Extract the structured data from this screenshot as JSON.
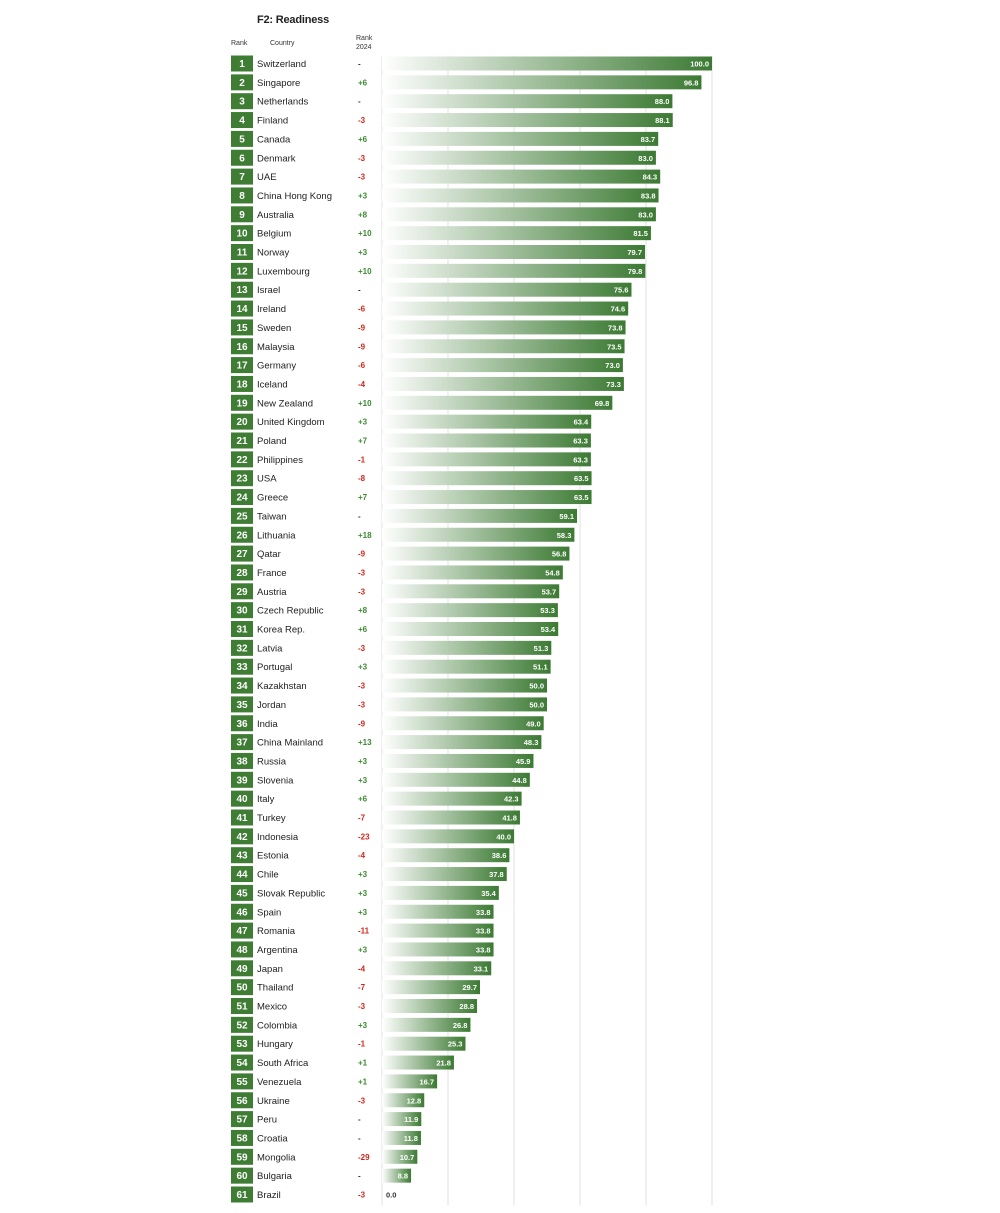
{
  "chart_data": {
    "type": "bar",
    "title": "F2: Readiness",
    "columns": {
      "rank": "Rank",
      "country": "Country",
      "change": "Rank 2024"
    },
    "xlim": [
      0,
      100
    ],
    "colors": {
      "rank_box": "#3f7d35",
      "bar_dark": "#3c7a33",
      "bar_light": "#ffffff",
      "up": "#3a8a2f",
      "down": "#d4261c",
      "same": "#333333"
    },
    "rows": [
      {
        "rank": "1",
        "country": "Switzerland",
        "change": "-",
        "value": 100.0,
        "label": "100.0"
      },
      {
        "rank": "2",
        "country": "Singapore",
        "change": "+6",
        "value": 96.8,
        "label": "96.8"
      },
      {
        "rank": "3",
        "country": "Netherlands",
        "change": "-",
        "value": 88.0,
        "label": "88.0"
      },
      {
        "rank": "4",
        "country": "Finland",
        "change": "-3",
        "value": 88.1,
        "label": "88.1"
      },
      {
        "rank": "5",
        "country": "Canada",
        "change": "+6",
        "value": 83.7,
        "label": "83.7"
      },
      {
        "rank": "6",
        "country": "Denmark",
        "change": "-3",
        "value": 83.0,
        "label": "83.0"
      },
      {
        "rank": "7",
        "country": "UAE",
        "change": "-3",
        "value": 84.3,
        "label": "84.3"
      },
      {
        "rank": "8",
        "country": "China Hong Kong",
        "change": "+3",
        "value": 83.8,
        "label": "83.8"
      },
      {
        "rank": "9",
        "country": "Australia",
        "change": "+8",
        "value": 83.0,
        "label": "83.0"
      },
      {
        "rank": "10",
        "country": "Belgium",
        "change": "+10",
        "value": 81.5,
        "label": "81.5"
      },
      {
        "rank": "11",
        "country": "Norway",
        "change": "+3",
        "value": 79.7,
        "label": "79.7"
      },
      {
        "rank": "12",
        "country": "Luxembourg",
        "change": "+10",
        "value": 79.8,
        "label": "79.8"
      },
      {
        "rank": "13",
        "country": "Israel",
        "change": "-",
        "value": 75.6,
        "label": "75.6"
      },
      {
        "rank": "14",
        "country": "Ireland",
        "change": "-6",
        "value": 74.6,
        "label": "74.6"
      },
      {
        "rank": "15",
        "country": "Sweden",
        "change": "-9",
        "value": 73.8,
        "label": "73.8"
      },
      {
        "rank": "16",
        "country": "Malaysia",
        "change": "-9",
        "value": 73.5,
        "label": "73.5"
      },
      {
        "rank": "17",
        "country": "Germany",
        "change": "-6",
        "value": 73.0,
        "label": "73.0"
      },
      {
        "rank": "18",
        "country": "Iceland",
        "change": "-4",
        "value": 73.3,
        "label": "73.3"
      },
      {
        "rank": "19",
        "country": "New Zealand",
        "change": "+10",
        "value": 69.8,
        "label": "69.8"
      },
      {
        "rank": "20",
        "country": "United Kingdom",
        "change": "+3",
        "value": 63.4,
        "label": "63.4"
      },
      {
        "rank": "21",
        "country": "Poland",
        "change": "+7",
        "value": 63.3,
        "label": "63.3"
      },
      {
        "rank": "22",
        "country": "Philippines",
        "change": "-1",
        "value": 63.3,
        "label": "63.3"
      },
      {
        "rank": "23",
        "country": "USA",
        "change": "-8",
        "value": 63.5,
        "label": "63.5"
      },
      {
        "rank": "24",
        "country": "Greece",
        "change": "+7",
        "value": 63.5,
        "label": "63.5"
      },
      {
        "rank": "25",
        "country": "Taiwan",
        "change": "-",
        "value": 59.1,
        "label": "59.1"
      },
      {
        "rank": "26",
        "country": "Lithuania",
        "change": "+18",
        "value": 58.3,
        "label": "58.3"
      },
      {
        "rank": "27",
        "country": "Qatar",
        "change": "-9",
        "value": 56.8,
        "label": "56.8"
      },
      {
        "rank": "28",
        "country": "France",
        "change": "-3",
        "value": 54.8,
        "label": "54.8"
      },
      {
        "rank": "29",
        "country": "Austria",
        "change": "-3",
        "value": 53.7,
        "label": "53.7"
      },
      {
        "rank": "30",
        "country": "Czech Republic",
        "change": "+8",
        "value": 53.3,
        "label": "53.3"
      },
      {
        "rank": "31",
        "country": "Korea Rep.",
        "change": "+6",
        "value": 53.4,
        "label": "53.4"
      },
      {
        "rank": "32",
        "country": "Latvia",
        "change": "-3",
        "value": 51.3,
        "label": "51.3"
      },
      {
        "rank": "33",
        "country": "Portugal",
        "change": "+3",
        "value": 51.1,
        "label": "51.1"
      },
      {
        "rank": "34",
        "country": "Kazakhstan",
        "change": "-3",
        "value": 50.0,
        "label": "50.0"
      },
      {
        "rank": "35",
        "country": "Jordan",
        "change": "-3",
        "value": 50.0,
        "label": "50.0"
      },
      {
        "rank": "36",
        "country": "India",
        "change": "-9",
        "value": 49.0,
        "label": "49.0"
      },
      {
        "rank": "37",
        "country": "China Mainland",
        "change": "+13",
        "value": 48.3,
        "label": "48.3"
      },
      {
        "rank": "38",
        "country": "Russia",
        "change": "+3",
        "value": 45.9,
        "label": "45.9"
      },
      {
        "rank": "39",
        "country": "Slovenia",
        "change": "+3",
        "value": 44.8,
        "label": "44.8"
      },
      {
        "rank": "40",
        "country": "Italy",
        "change": "+6",
        "value": 42.3,
        "label": "42.3"
      },
      {
        "rank": "41",
        "country": "Turkey",
        "change": "-7",
        "value": 41.8,
        "label": "41.8"
      },
      {
        "rank": "42",
        "country": "Indonesia",
        "change": "-23",
        "value": 40.0,
        "label": "40.0"
      },
      {
        "rank": "43",
        "country": "Estonia",
        "change": "-4",
        "value": 38.6,
        "label": "38.6"
      },
      {
        "rank": "44",
        "country": "Chile",
        "change": "+3",
        "value": 37.8,
        "label": "37.8"
      },
      {
        "rank": "45",
        "country": "Slovak Republic",
        "change": "+3",
        "value": 35.4,
        "label": "35.4"
      },
      {
        "rank": "46",
        "country": "Spain",
        "change": "+3",
        "value": 33.8,
        "label": "33.8"
      },
      {
        "rank": "47",
        "country": "Romania",
        "change": "-11",
        "value": 33.8,
        "label": "33.8"
      },
      {
        "rank": "48",
        "country": "Argentina",
        "change": "+3",
        "value": 33.8,
        "label": "33.8"
      },
      {
        "rank": "49",
        "country": "Japan",
        "change": "-4",
        "value": 33.1,
        "label": "33.1"
      },
      {
        "rank": "50",
        "country": "Thailand",
        "change": "-7",
        "value": 29.7,
        "label": "29.7"
      },
      {
        "rank": "51",
        "country": "Mexico",
        "change": "-3",
        "value": 28.8,
        "label": "28.8"
      },
      {
        "rank": "52",
        "country": "Colombia",
        "change": "+3",
        "value": 26.8,
        "label": "26.8"
      },
      {
        "rank": "53",
        "country": "Hungary",
        "change": "-1",
        "value": 25.3,
        "label": "25.3"
      },
      {
        "rank": "54",
        "country": "South Africa",
        "change": "+1",
        "value": 21.8,
        "label": "21.8"
      },
      {
        "rank": "55",
        "country": "Venezuela",
        "change": "+1",
        "value": 16.7,
        "label": "16.7"
      },
      {
        "rank": "56",
        "country": "Ukraine",
        "change": "-3",
        "value": 12.8,
        "label": "12.8"
      },
      {
        "rank": "57",
        "country": "Peru",
        "change": "-",
        "value": 11.9,
        "label": "11.9"
      },
      {
        "rank": "58",
        "country": "Croatia",
        "change": "-",
        "value": 11.8,
        "label": "11.8"
      },
      {
        "rank": "59",
        "country": "Mongolia",
        "change": "-29",
        "value": 10.7,
        "label": "10.7"
      },
      {
        "rank": "60",
        "country": "Bulgaria",
        "change": "-",
        "value": 8.8,
        "label": "8.8"
      },
      {
        "rank": "61",
        "country": "Brazil",
        "change": "-3",
        "value": 0.0,
        "label": "0.0"
      }
    ]
  }
}
